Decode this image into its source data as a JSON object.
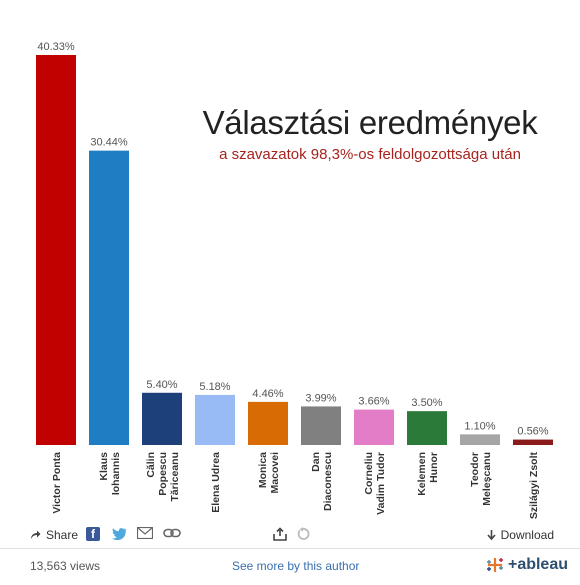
{
  "chart_data": {
    "type": "bar",
    "title": "Választási eredmények",
    "subtitle": "a szavazatok 98,3%-os feldolgozottsága után",
    "categories": [
      "Victor Ponta",
      "Klaus Iohannis",
      "Călin Popescu Tăriceanu",
      "Elena Udrea",
      "Monica Macovei",
      "Dan Diaconescu",
      "Corneliu Vadim Tudor",
      "Kelemen Hunor",
      "Teodor Meleșcanu",
      "Szilágyi Zsolt"
    ],
    "category_lines": [
      [
        "Victor Ponta"
      ],
      [
        "Klaus",
        "Iohannis"
      ],
      [
        "Călin",
        "Popescu",
        "Tăriceanu"
      ],
      [
        "Elena Udrea"
      ],
      [
        "Monica",
        "Macovei"
      ],
      [
        "Dan",
        "Diaconescu"
      ],
      [
        "Corneliu",
        "Vadim Tudor"
      ],
      [
        "Kelemen",
        "Hunor"
      ],
      [
        "Teodor",
        "Meleșcanu"
      ],
      [
        "Szilágyi Zsolt"
      ]
    ],
    "values": [
      40.33,
      30.44,
      5.4,
      5.18,
      4.46,
      3.99,
      3.66,
      3.5,
      1.1,
      0.56
    ],
    "data_labels": [
      "40.33%",
      "30.44%",
      "5.40%",
      "5.18%",
      "4.46%",
      "3.99%",
      "3.66%",
      "3.50%",
      "1.10%",
      "0.56%"
    ],
    "colors": [
      "#c10000",
      "#1f7dc4",
      "#1d3f7a",
      "#99bbf5",
      "#d96b05",
      "#808080",
      "#e47dc8",
      "#2c7a3a",
      "#a6a6a6",
      "#8b1a1a"
    ],
    "xlabel": "",
    "ylabel": "",
    "ylim": [
      0,
      40.33
    ],
    "grid": false,
    "legend": "none"
  },
  "toolbar": {
    "share_label": "Share",
    "facebook_glyph": "f",
    "download_label": "Download"
  },
  "footer": {
    "views": "13,563 views",
    "see_more": "See more by this author",
    "logo_text": "+ableau"
  }
}
